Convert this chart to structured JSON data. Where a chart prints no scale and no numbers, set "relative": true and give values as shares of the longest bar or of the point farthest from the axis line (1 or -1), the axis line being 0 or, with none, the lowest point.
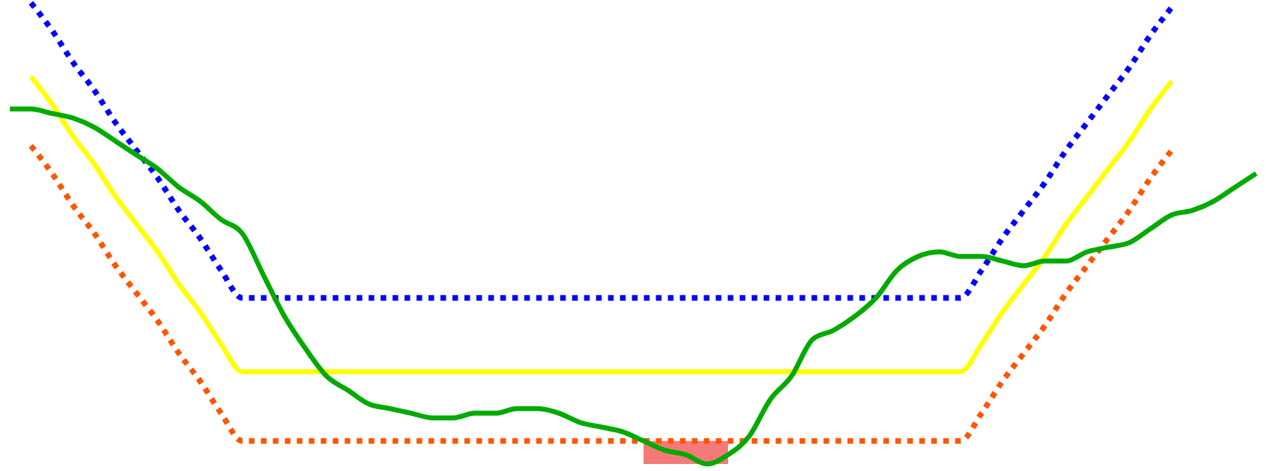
{
  "chart_data": {
    "type": "line",
    "relative": true,
    "categories": [
      null,
      null,
      null,
      null,
      null,
      null,
      null,
      null,
      null,
      null,
      null,
      null,
      null,
      null,
      null,
      null,
      null,
      null,
      null,
      null,
      null,
      null,
      null,
      null,
      null,
      null,
      null,
      null,
      null,
      null,
      null,
      null,
      null,
      null,
      null,
      null,
      null,
      null,
      null,
      null,
      null,
      null,
      null,
      null,
      null,
      null,
      null,
      null,
      null,
      null,
      null,
      null,
      null,
      null,
      null,
      null,
      null,
      null,
      null,
      null
    ],
    "series": [
      {
        "type": "area",
        "color": "#f47a7a",
        "values": [
          null,
          null,
          null,
          null,
          null,
          null,
          null,
          null,
          null,
          null,
          null,
          null,
          null,
          null,
          null,
          null,
          null,
          null,
          null,
          null,
          null,
          null,
          null,
          null,
          null,
          null,
          null,
          null,
          null,
          null,
          0.05,
          0.05,
          0.05,
          0.05,
          0.05,
          null,
          null,
          null,
          null,
          null,
          null,
          null,
          null,
          null,
          null,
          null,
          null,
          null,
          null,
          null,
          null,
          null,
          null,
          null,
          null,
          null,
          null,
          null,
          null,
          null
        ]
      },
      {
        "color": "#0000ff",
        "line_style": "dotted",
        "values": [
          null,
          1.0,
          0.94,
          0.87,
          0.81,
          0.74,
          0.68,
          0.62,
          0.55,
          0.49,
          0.42,
          0.36,
          0.36,
          0.36,
          0.36,
          0.36,
          0.36,
          0.36,
          0.36,
          0.36,
          0.36,
          0.36,
          0.36,
          0.36,
          0.36,
          0.36,
          0.36,
          0.36,
          0.36,
          0.36,
          0.36,
          0.36,
          0.36,
          0.36,
          0.36,
          0.36,
          0.36,
          0.36,
          0.36,
          0.36,
          0.36,
          0.36,
          0.36,
          0.36,
          0.36,
          0.36,
          0.42,
          0.49,
          0.55,
          0.61,
          0.68,
          0.74,
          0.8,
          0.86,
          0.93,
          0.99,
          null,
          null,
          null,
          null
        ]
      },
      {
        "color": "#ffff00",
        "line_style": "solid",
        "values": [
          null,
          0.84,
          0.78,
          0.71,
          0.65,
          0.58,
          0.52,
          0.46,
          0.39,
          0.33,
          0.26,
          0.2,
          0.2,
          0.2,
          0.2,
          0.2,
          0.2,
          0.2,
          0.2,
          0.2,
          0.2,
          0.2,
          0.2,
          0.2,
          0.2,
          0.2,
          0.2,
          0.2,
          0.2,
          0.2,
          0.2,
          0.2,
          0.2,
          0.2,
          0.2,
          0.2,
          0.2,
          0.2,
          0.2,
          0.2,
          0.2,
          0.2,
          0.2,
          0.2,
          0.2,
          0.2,
          0.26,
          0.33,
          0.39,
          0.45,
          0.52,
          0.58,
          0.64,
          0.7,
          0.77,
          0.83,
          null,
          null,
          null,
          null
        ]
      },
      {
        "color": "#ff5500",
        "line_style": "dotted",
        "values": [
          null,
          0.69,
          0.63,
          0.56,
          0.5,
          0.43,
          0.37,
          0.31,
          0.24,
          0.18,
          0.11,
          0.05,
          0.05,
          0.05,
          0.05,
          0.05,
          0.05,
          0.05,
          0.05,
          0.05,
          0.05,
          0.05,
          0.05,
          0.05,
          0.05,
          0.05,
          0.05,
          0.05,
          0.05,
          0.05,
          0.05,
          0.05,
          0.05,
          0.05,
          0.05,
          0.05,
          0.05,
          0.05,
          0.05,
          0.05,
          0.05,
          0.05,
          0.05,
          0.05,
          0.05,
          0.05,
          0.11,
          0.18,
          0.24,
          0.3,
          0.37,
          0.43,
          0.49,
          0.55,
          0.62,
          0.68,
          null,
          null,
          null,
          null
        ]
      },
      {
        "color": "#00aa00",
        "line_style": "solid",
        "values": [
          0.77,
          0.77,
          0.76,
          0.75,
          0.73,
          0.7,
          0.67,
          0.64,
          0.6,
          0.57,
          0.53,
          0.5,
          0.41,
          0.32,
          0.25,
          0.19,
          0.16,
          0.13,
          0.12,
          0.11,
          0.1,
          0.1,
          0.11,
          0.11,
          0.12,
          0.12,
          0.11,
          0.09,
          0.08,
          0.07,
          0.05,
          0.03,
          0.02,
          0,
          0.02,
          0.06,
          0.14,
          0.19,
          0.27,
          0.29,
          0.32,
          0.36,
          0.42,
          0.45,
          0.46,
          0.45,
          0.45,
          0.44,
          0.43,
          0.44,
          0.44,
          0.46,
          0.47,
          0.48,
          0.51,
          0.54,
          0.55,
          0.57,
          0.6,
          0.63
        ]
      }
    ]
  }
}
